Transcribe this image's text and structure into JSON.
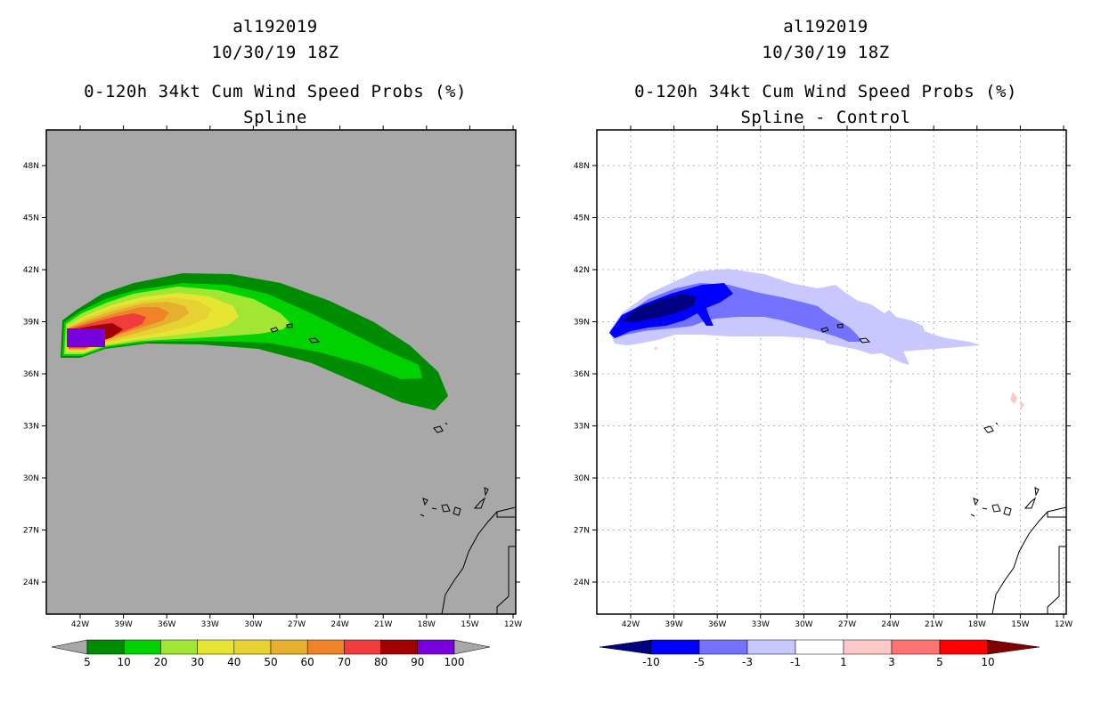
{
  "left_panel": {
    "title_line1": "al192019",
    "title_line2": "10/30/19 18Z",
    "title_line3": "0-120h 34kt Cum Wind Speed Probs (%)",
    "title_line4": "Spline",
    "background_color": "#a8a8a8"
  },
  "right_panel": {
    "title_line1": "al192019",
    "title_line2": "10/30/19 18Z",
    "title_line3": "0-120h 34kt Cum Wind Speed Probs (%)",
    "title_line4": "Spline - Control",
    "background_color": "#ffffff"
  },
  "map": {
    "lat_labels": [
      "48N",
      "45N",
      "42N",
      "39N",
      "36N",
      "33N",
      "30N",
      "27N",
      "24N"
    ],
    "lon_labels": [
      "42W",
      "39W",
      "36W",
      "33W",
      "30W",
      "27W",
      "24W",
      "21W",
      "18W",
      "15W",
      "12W"
    ]
  },
  "left_colorbar": {
    "labels": [
      "5",
      "10",
      "20",
      "30",
      "40",
      "50",
      "60",
      "70",
      "80",
      "90",
      "100"
    ],
    "colors": [
      "#008c00",
      "#00d200",
      "#a0e632",
      "#e6e632",
      "#e6d232",
      "#e6af2d",
      "#f08228",
      "#f03c3c",
      "#a00000",
      "#7800dc"
    ],
    "under_color": "#a8a8a8",
    "over_color": "#a8a8a8"
  },
  "right_colorbar": {
    "labels": [
      "-10",
      "-5",
      "-3",
      "-1",
      "1",
      "3",
      "5",
      "10"
    ],
    "colors": [
      "#0000ff",
      "#7373ff",
      "#c8c8ff",
      "#ffffff",
      "#ffc8c8",
      "#ff7373",
      "#ff0000"
    ],
    "under_color": "#000080",
    "over_color": "#800000"
  }
}
